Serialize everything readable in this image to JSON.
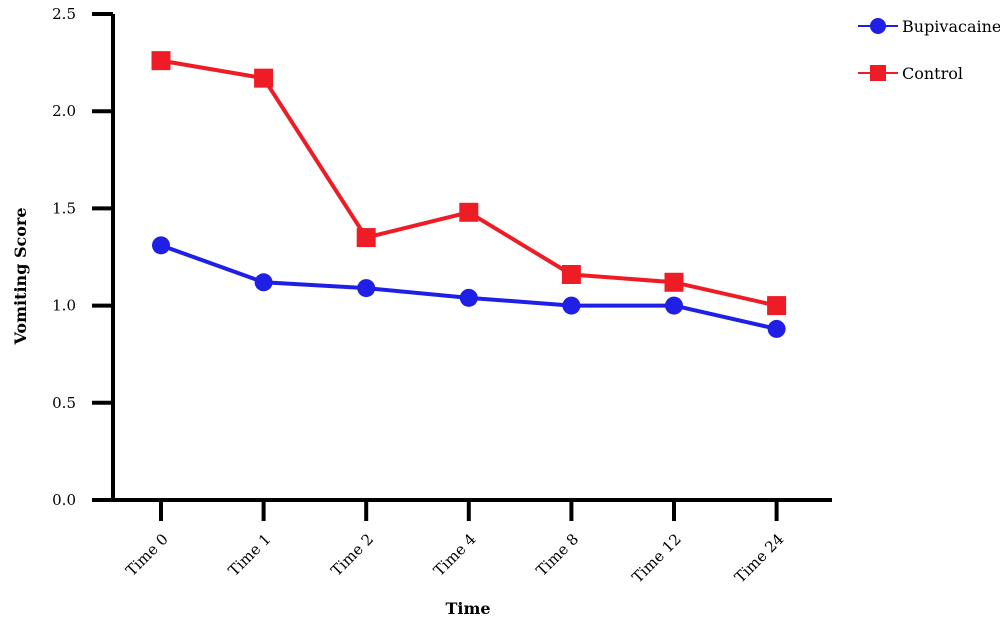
{
  "chart_data": {
    "type": "line",
    "title": "",
    "xlabel": "Time",
    "ylabel": "Vomiting Score",
    "categories": [
      "Time 0",
      "Time 1",
      "Time 2",
      "Time 4",
      "Time 8",
      "Time 12",
      "Time 24"
    ],
    "ylim": [
      0,
      2.5
    ],
    "yticks": [
      "0.0",
      "0.5",
      "1.0",
      "1.5",
      "2.0",
      "2.5"
    ],
    "grid": false,
    "legend_position": "top-right",
    "series": [
      {
        "name": "Bupivacaine",
        "color": "#1f1fe6",
        "marker": "circle",
        "values": [
          1.31,
          1.12,
          1.09,
          1.04,
          1.0,
          1.0,
          0.88
        ]
      },
      {
        "name": "Control",
        "color": "#ee1c25",
        "marker": "square",
        "values": [
          2.26,
          2.17,
          1.35,
          1.48,
          1.16,
          1.12,
          1.0
        ]
      }
    ]
  }
}
